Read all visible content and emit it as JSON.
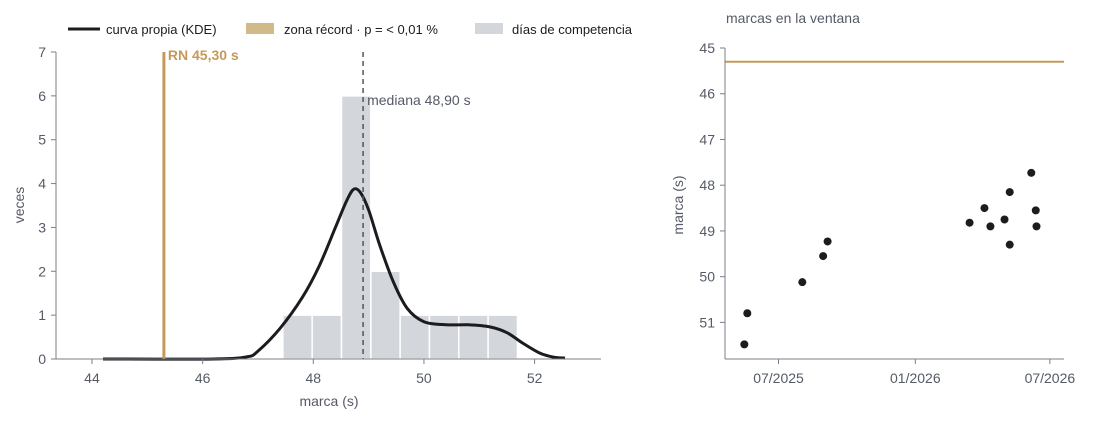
{
  "chart_data": [
    {
      "type": "bar",
      "xlabel": "marca (s)",
      "ylabel": "veces",
      "xlim": [
        43.35,
        53.2
      ],
      "ylim": [
        0,
        7
      ],
      "xticks": [
        "44",
        "46",
        "48",
        "50",
        "52"
      ],
      "xtick_values": [
        44,
        46,
        48,
        50,
        52
      ],
      "yticks": [
        "0",
        "1",
        "2",
        "3",
        "4",
        "5",
        "6",
        "7"
      ],
      "ytick_values": [
        0,
        1,
        2,
        3,
        4,
        5,
        6,
        7
      ],
      "legend_position": "top",
      "legend": [
        {
          "label": "curva propia (KDE)",
          "kind": "line"
        },
        {
          "label": "zona récord · p = < 0,01 %",
          "kind": "patch"
        },
        {
          "label": "días de competencia",
          "kind": "patch"
        }
      ],
      "histogram": {
        "name": "días de competencia",
        "bin_edges": [
          47.45,
          47.98,
          48.51,
          49.04,
          49.57,
          50.1,
          50.63,
          51.16,
          51.69
        ],
        "counts": [
          1,
          1,
          6,
          2,
          1,
          1,
          1,
          1
        ]
      },
      "kde": {
        "name": "curva propia (KDE)",
        "x": [
          44.2,
          46.2,
          46.8,
          47.0,
          47.4,
          47.8,
          48.1,
          48.4,
          48.6,
          48.73,
          48.85,
          49.0,
          49.2,
          49.45,
          49.7,
          50.0,
          50.4,
          50.8,
          51.2,
          51.5,
          51.8,
          52.1,
          52.35,
          52.55
        ],
        "y": [
          0.0,
          0.0,
          0.05,
          0.18,
          0.7,
          1.4,
          2.1,
          3.0,
          3.6,
          3.87,
          3.8,
          3.4,
          2.6,
          1.75,
          1.15,
          0.85,
          0.78,
          0.78,
          0.73,
          0.6,
          0.35,
          0.13,
          0.04,
          0.02
        ]
      },
      "record_line": {
        "value": 45.3,
        "label": "RN 45,30 s"
      },
      "median_line": {
        "value": 48.9,
        "label": "mediana 48,90 s"
      },
      "colors": {
        "kde": "#1c1c1e",
        "record": "#c49a5a",
        "record_patch": "#d2b98a",
        "hist": "#d3d6db",
        "median": "#505560",
        "axis": "#7a7f8a"
      }
    },
    {
      "type": "scatter",
      "title": "marcas en la ventana",
      "xlabel": "",
      "ylabel": "marca (s)",
      "y_inverted": true,
      "xlim": [
        "2025-04-20",
        "2026-07-20"
      ],
      "ylim": [
        51.8,
        45.0
      ],
      "xticks": [
        "07/2025",
        "01/2026",
        "07/2026"
      ],
      "xtick_values": [
        "2025-07-01",
        "2026-01-01",
        "2026-07-01"
      ],
      "yticks": [
        "45",
        "46",
        "47",
        "48",
        "49",
        "50",
        "51"
      ],
      "ytick_values": [
        45,
        46,
        47,
        48,
        49,
        50,
        51
      ],
      "record_line": {
        "value": 45.3
      },
      "points": [
        {
          "x": "2025-05-16",
          "y": 51.48
        },
        {
          "x": "2025-05-20",
          "y": 50.8
        },
        {
          "x": "2025-08-02",
          "y": 50.12
        },
        {
          "x": "2025-08-30",
          "y": 49.55
        },
        {
          "x": "2025-09-05",
          "y": 49.23
        },
        {
          "x": "2026-03-15",
          "y": 48.82
        },
        {
          "x": "2026-04-04",
          "y": 48.5
        },
        {
          "x": "2026-04-12",
          "y": 48.9
        },
        {
          "x": "2026-05-01",
          "y": 48.75
        },
        {
          "x": "2026-05-08",
          "y": 49.3
        },
        {
          "x": "2026-05-08",
          "y": 48.15
        },
        {
          "x": "2026-06-06",
          "y": 47.73
        },
        {
          "x": "2026-06-12",
          "y": 48.55
        },
        {
          "x": "2026-06-13",
          "y": 48.9
        }
      ],
      "colors": {
        "point": "#1c1c1e",
        "record": "#c49a5a",
        "axis": "#7a7f8a"
      }
    }
  ]
}
